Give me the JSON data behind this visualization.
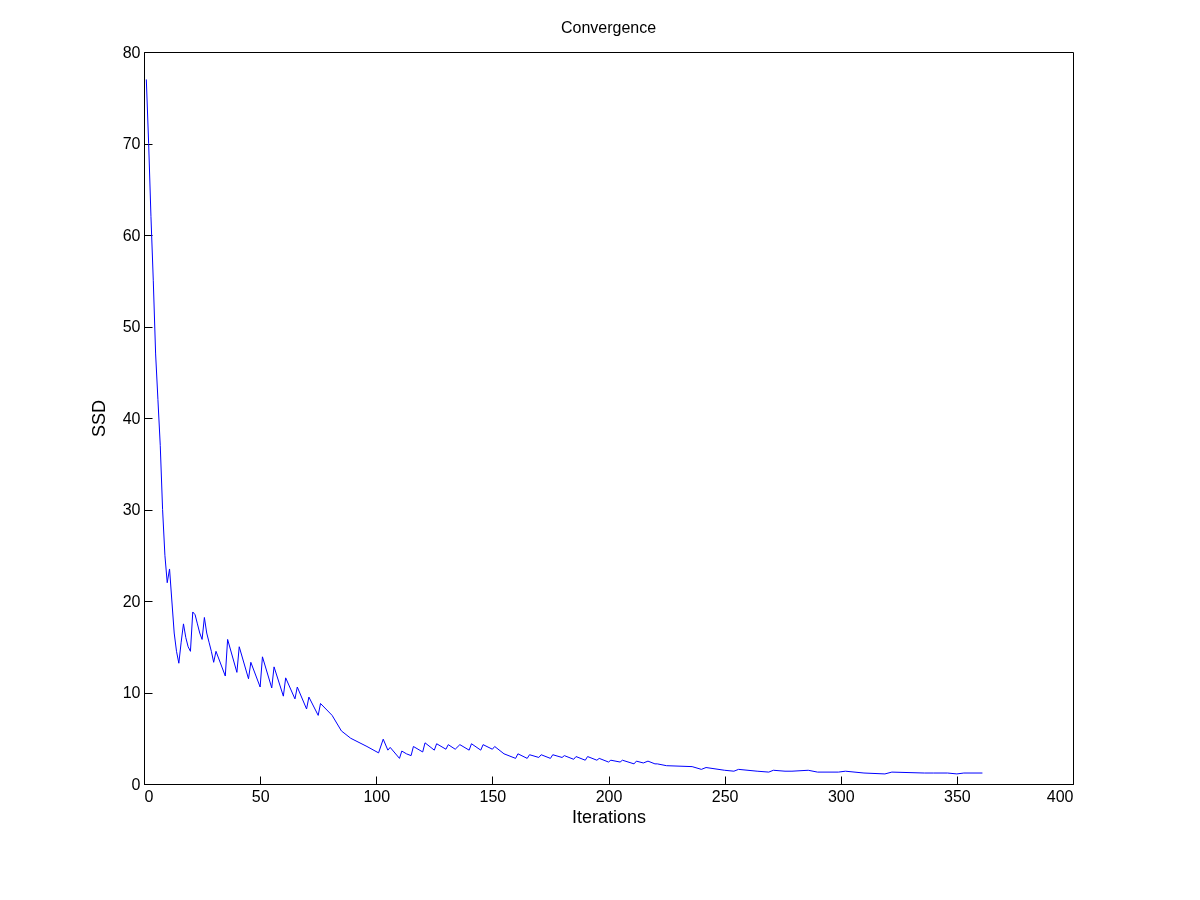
{
  "chart_data": {
    "type": "line",
    "title": "Convergence",
    "xlabel": "Iterations",
    "ylabel": "SSD",
    "xlim": [
      0,
      400
    ],
    "ylim": [
      0,
      80
    ],
    "xticks": [
      0,
      50,
      100,
      150,
      200,
      250,
      300,
      350,
      400
    ],
    "yticks": [
      0,
      10,
      20,
      30,
      40,
      50,
      60,
      70,
      80
    ],
    "grid": false,
    "legend": false,
    "marker": "none",
    "line_style": "solid",
    "series": [
      {
        "color": "#0000ff",
        "x": [
          1,
          2,
          3,
          4,
          5,
          6,
          7,
          8,
          9,
          10,
          11,
          12,
          13,
          14,
          15,
          16,
          17,
          18,
          19,
          20,
          21,
          22,
          23,
          24,
          25,
          26,
          27,
          28,
          29,
          30,
          31,
          35,
          36,
          40,
          41,
          45,
          46,
          50,
          51,
          55,
          56,
          60,
          61,
          65,
          66,
          70,
          71,
          75,
          76,
          81,
          85,
          89,
          96,
          101,
          103,
          105,
          106,
          110,
          111,
          113,
          115,
          116,
          120,
          121,
          125,
          126,
          130,
          131,
          134,
          136,
          140,
          141,
          145,
          146,
          150,
          151,
          155,
          160,
          161,
          165,
          166,
          170,
          171,
          175,
          176,
          180,
          181,
          185,
          186,
          190,
          191,
          195,
          196,
          200,
          201,
          205,
          206,
          211,
          212,
          215,
          217,
          220,
          221,
          225,
          236,
          240,
          242,
          250,
          254,
          256,
          264,
          269,
          271,
          276,
          279,
          286,
          290,
          299,
          302,
          310,
          319,
          322,
          336,
          340,
          346,
          350,
          353,
          361
        ],
        "values": [
          77,
          70,
          62,
          55,
          47,
          42,
          37,
          30,
          25,
          22,
          23.5,
          20,
          16.5,
          14.5,
          13.2,
          15.5,
          17.5,
          16,
          15,
          14.5,
          18.8,
          18.5,
          17.5,
          16.5,
          15.8,
          18.2,
          16.5,
          15.5,
          14.5,
          13.3,
          14.5,
          11.8,
          15.8,
          12.2,
          15,
          11.5,
          13.3,
          10.6,
          13.9,
          10.5,
          12.8,
          9.6,
          11.6,
          9.3,
          10.6,
          8.2,
          9.5,
          7.5,
          8.8,
          7.5,
          5.8,
          5,
          4.1,
          3.4,
          4.9,
          3.7,
          4,
          2.8,
          3.6,
          3.3,
          3.1,
          4.1,
          3.5,
          4.5,
          3.7,
          4.4,
          3.8,
          4.3,
          3.8,
          4.3,
          3.7,
          4.4,
          3.7,
          4.3,
          3.8,
          4.1,
          3.3,
          2.8,
          3.3,
          2.8,
          3.2,
          2.9,
          3.2,
          2.8,
          3.2,
          2.9,
          3.1,
          2.7,
          3,
          2.6,
          3,
          2.6,
          2.8,
          2.4,
          2.6,
          2.4,
          2.6,
          2.2,
          2.5,
          2.3,
          2.5,
          2.2,
          2.2,
          2,
          1.9,
          1.6,
          1.8,
          1.5,
          1.4,
          1.6,
          1.4,
          1.3,
          1.5,
          1.4,
          1.4,
          1.5,
          1.3,
          1.3,
          1.4,
          1.2,
          1.1,
          1.3,
          1.2,
          1.2,
          1.2,
          1.1,
          1.2,
          1.2
        ]
      }
    ]
  }
}
